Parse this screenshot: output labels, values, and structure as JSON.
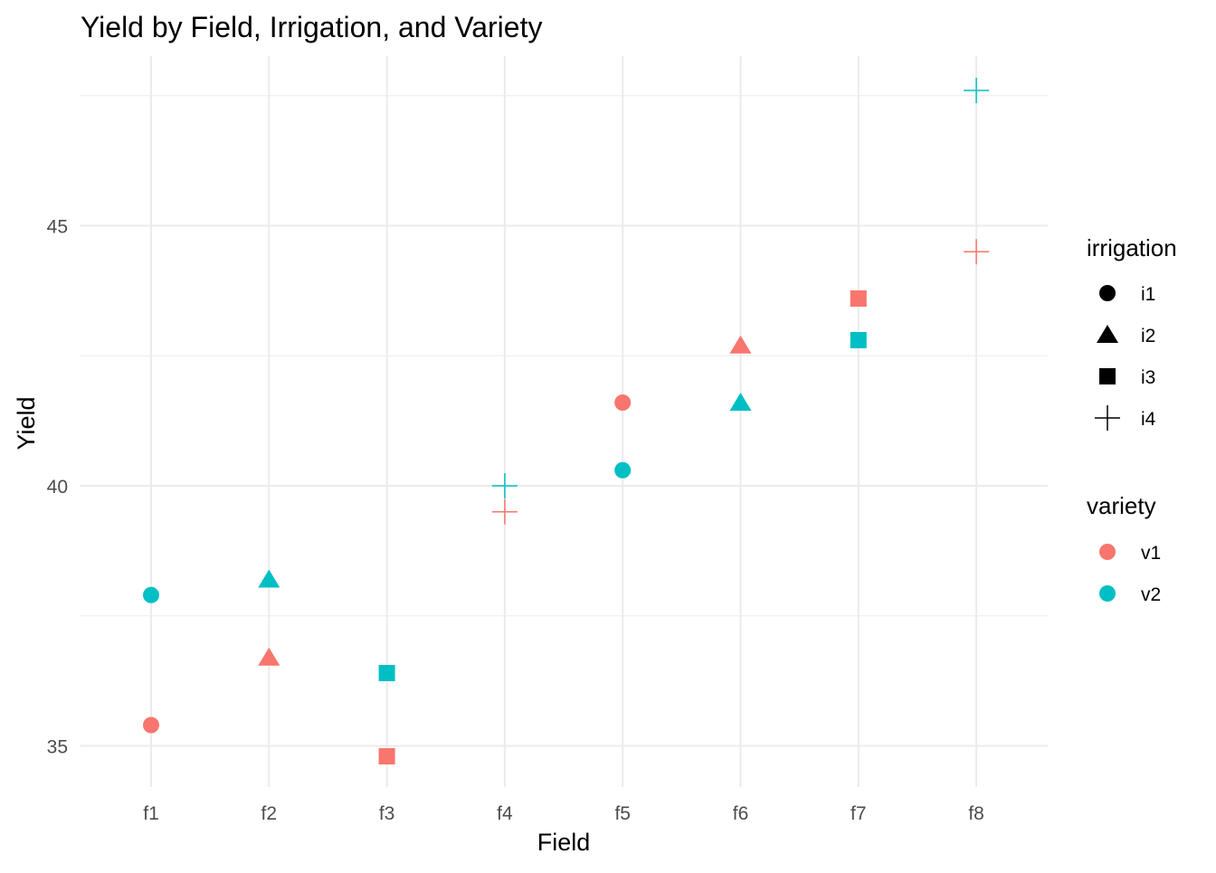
{
  "chart_data": {
    "type": "scatter",
    "title": "Yield by Field, Irrigation, and Variety",
    "xlabel": "Field",
    "ylabel": "Yield",
    "categories": [
      "f1",
      "f2",
      "f3",
      "f4",
      "f5",
      "f6",
      "f7",
      "f8"
    ],
    "y_ticks": [
      35,
      40,
      45
    ],
    "ylim": [
      34.2,
      48.3
    ],
    "grid": true,
    "legend_position": "right",
    "colors": {
      "v1": "#F8766D",
      "v2": "#00BFC4"
    },
    "shapes": {
      "i1": "circle",
      "i2": "triangle",
      "i3": "square",
      "i4": "cross"
    },
    "legends": [
      {
        "title": "irrigation",
        "items": [
          {
            "label": "i1",
            "shape": "circle"
          },
          {
            "label": "i2",
            "shape": "triangle"
          },
          {
            "label": "i3",
            "shape": "square"
          },
          {
            "label": "i4",
            "shape": "cross"
          }
        ]
      },
      {
        "title": "variety",
        "items": [
          {
            "label": "v1",
            "color": "#F8766D"
          },
          {
            "label": "v2",
            "color": "#00BFC4"
          }
        ]
      }
    ],
    "points": [
      {
        "field": "f1",
        "irrigation": "i1",
        "variety": "v1",
        "yield": 35.4
      },
      {
        "field": "f1",
        "irrigation": "i1",
        "variety": "v2",
        "yield": 37.9
      },
      {
        "field": "f2",
        "irrigation": "i2",
        "variety": "v1",
        "yield": 36.7
      },
      {
        "field": "f2",
        "irrigation": "i2",
        "variety": "v2",
        "yield": 38.2
      },
      {
        "field": "f3",
        "irrigation": "i3",
        "variety": "v1",
        "yield": 34.8
      },
      {
        "field": "f3",
        "irrigation": "i3",
        "variety": "v2",
        "yield": 36.4
      },
      {
        "field": "f4",
        "irrigation": "i4",
        "variety": "v1",
        "yield": 39.5
      },
      {
        "field": "f4",
        "irrigation": "i4",
        "variety": "v2",
        "yield": 40.0
      },
      {
        "field": "f5",
        "irrigation": "i1",
        "variety": "v1",
        "yield": 41.6
      },
      {
        "field": "f5",
        "irrigation": "i1",
        "variety": "v2",
        "yield": 40.3
      },
      {
        "field": "f6",
        "irrigation": "i2",
        "variety": "v1",
        "yield": 42.7
      },
      {
        "field": "f6",
        "irrigation": "i2",
        "variety": "v2",
        "yield": 41.6
      },
      {
        "field": "f7",
        "irrigation": "i3",
        "variety": "v1",
        "yield": 43.6
      },
      {
        "field": "f7",
        "irrigation": "i3",
        "variety": "v2",
        "yield": 42.8
      },
      {
        "field": "f8",
        "irrigation": "i4",
        "variety": "v1",
        "yield": 44.5
      },
      {
        "field": "f8",
        "irrigation": "i4",
        "variety": "v2",
        "yield": 47.6
      }
    ]
  }
}
